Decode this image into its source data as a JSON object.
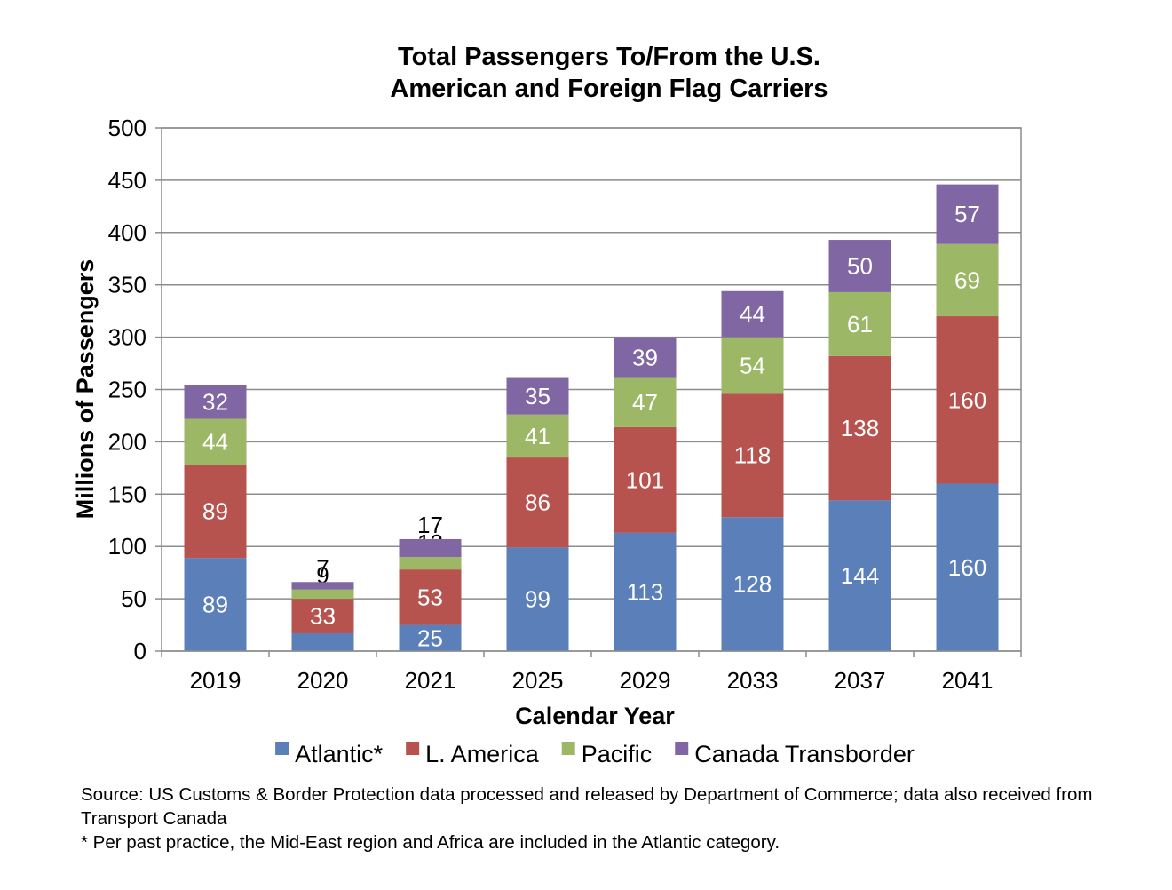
{
  "chart_data": {
    "type": "bar",
    "stacked": true,
    "title": [
      "Total Passengers To/From the U.S.",
      "American and Foreign Flag Carriers"
    ],
    "xlabel": "Calendar Year",
    "ylabel": "Millions of Passengers",
    "categories": [
      "2019",
      "2020",
      "2021",
      "2025",
      "2029",
      "2033",
      "2037",
      "2041"
    ],
    "ylim": [
      0,
      500
    ],
    "yticks": [
      0,
      50,
      100,
      150,
      200,
      250,
      300,
      350,
      400,
      450,
      500
    ],
    "grid": true,
    "legend_position": "bottom",
    "series": [
      {
        "name": "Atlantic*",
        "color": "#5B80B9",
        "values": [
          89,
          17,
          25,
          99,
          113,
          128,
          144,
          160
        ]
      },
      {
        "name": "L. America",
        "color": "#B7534F",
        "values": [
          89,
          33,
          53,
          86,
          101,
          118,
          138,
          160
        ]
      },
      {
        "name": "Pacific",
        "color": "#9CB765",
        "values": [
          44,
          9,
          12,
          41,
          47,
          54,
          61,
          69
        ]
      },
      {
        "name": "Canada Transborder",
        "color": "#8166A4",
        "values": [
          32,
          7,
          17,
          35,
          39,
          44,
          50,
          57
        ]
      }
    ]
  },
  "footnotes": {
    "source": "Source:  US Customs & Border Protection data processed and released by Department of Commerce; data also received from Transport Canada",
    "note": "* Per past practice, the Mid-East region and Africa are included in the Atlantic category."
  }
}
